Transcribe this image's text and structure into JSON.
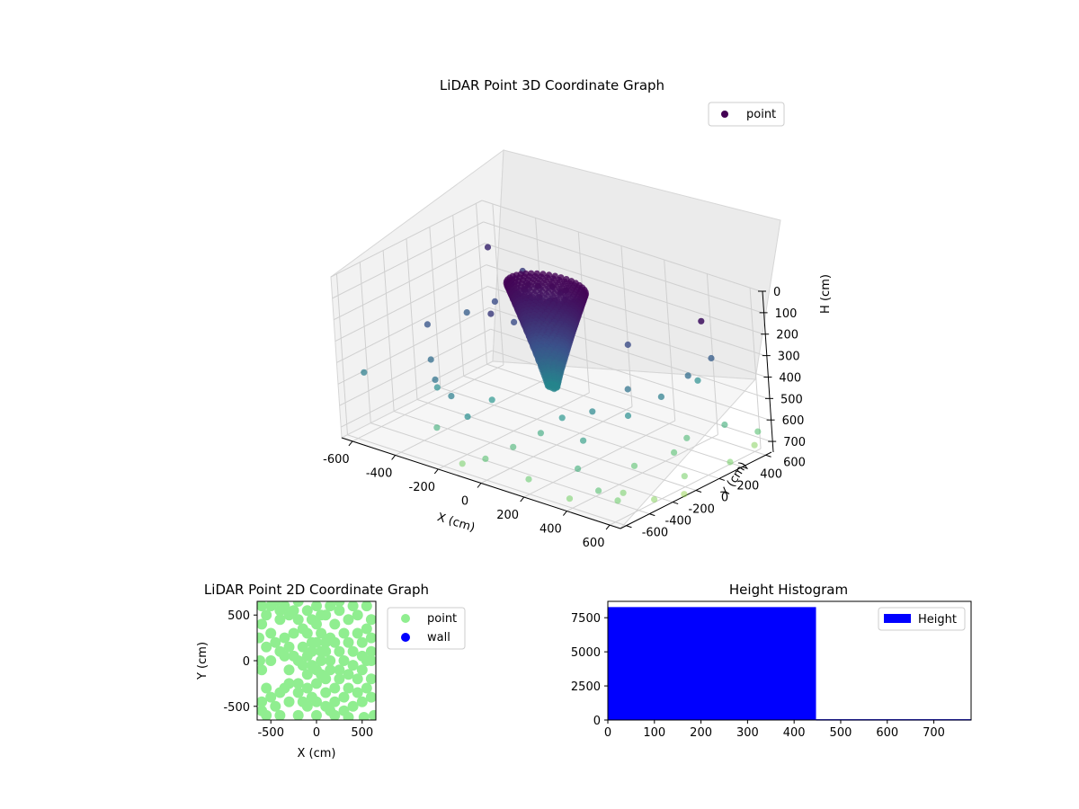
{
  "chart_data": [
    {
      "type": "scatter3d",
      "title": "LiDAR Point 3D Coordinate Graph",
      "xlabel": "X (cm)",
      "ylabel": "Y (cm)",
      "zlabel": "H (cm)",
      "xlim": [
        -650,
        650
      ],
      "ylim": [
        -650,
        650
      ],
      "zlim": [
        0,
        750
      ],
      "zaxis_inverted": true,
      "xticks": [
        -600,
        -400,
        -200,
        0,
        200,
        400,
        600
      ],
      "yticks": [
        -600,
        -400,
        -200,
        0,
        200,
        400,
        600
      ],
      "zticks": [
        0,
        100,
        200,
        300,
        400,
        500,
        600,
        700
      ],
      "colormap": [
        "#440154",
        "#3b528b",
        "#21918c",
        "#5ec962",
        "#fde725"
      ],
      "legend": {
        "entries": [
          {
            "label": "point",
            "color": "#440154"
          }
        ],
        "placement": "top-right"
      },
      "grid": true,
      "series": [
        {
          "name": "point",
          "note_values": "[x, y, h] in cm, estimated",
          "values": [
            [
              -60,
              40,
              40
            ],
            [
              -10,
              70,
              35
            ],
            [
              40,
              50,
              40
            ],
            [
              80,
              10,
              50
            ],
            [
              -90,
              -20,
              50
            ],
            [
              0,
              -60,
              45
            ],
            [
              60,
              -40,
              45
            ],
            [
              -40,
              -70,
              55
            ],
            [
              110,
              40,
              60
            ],
            [
              -120,
              60,
              60
            ],
            [
              30,
              110,
              50
            ],
            [
              -30,
              -100,
              60
            ],
            [
              -70,
              20,
              110
            ],
            [
              -20,
              60,
              100
            ],
            [
              40,
              20,
              105
            ],
            [
              10,
              -40,
              110
            ],
            [
              -50,
              -30,
              120
            ],
            [
              60,
              -10,
              125
            ],
            [
              -40,
              30,
              180
            ],
            [
              10,
              30,
              170
            ],
            [
              30,
              -20,
              190
            ],
            [
              -20,
              -20,
              200
            ],
            [
              -60,
              60,
              210
            ],
            [
              60,
              40,
              215
            ],
            [
              -20,
              20,
              250
            ],
            [
              20,
              10,
              260
            ],
            [
              0,
              -10,
              280
            ],
            [
              -30,
              -10,
              300
            ],
            [
              40,
              30,
              310
            ],
            [
              -10,
              10,
              350
            ],
            [
              10,
              0,
              380
            ],
            [
              -20,
              -10,
              420
            ],
            [
              0,
              20,
              450
            ],
            [
              15,
              -15,
              480
            ],
            [
              -100,
              60,
              150
            ],
            [
              -300,
              50,
              250
            ],
            [
              -420,
              300,
              300
            ],
            [
              -500,
              200,
              350
            ],
            [
              -350,
              400,
              320
            ],
            [
              -200,
              300,
              300
            ],
            [
              -450,
              500,
              280
            ],
            [
              -250,
              150,
              300
            ],
            [
              -520,
              -100,
              330
            ],
            [
              -400,
              -300,
              400
            ],
            [
              -300,
              -450,
              420
            ],
            [
              -200,
              -500,
              450
            ],
            [
              -100,
              -550,
              500
            ],
            [
              -450,
              600,
              250
            ],
            [
              500,
              400,
              120
            ],
            [
              -580,
              -550,
              450
            ],
            [
              -350,
              -350,
              500
            ],
            [
              -150,
              -250,
              520
            ],
            [
              -250,
              -550,
              600
            ],
            [
              0,
              -600,
              650
            ],
            [
              200,
              -600,
              680
            ],
            [
              400,
              -620,
              700
            ],
            [
              -100,
              -620,
              700
            ],
            [
              300,
              -300,
              550
            ],
            [
              380,
              -500,
              600
            ],
            [
              500,
              -550,
              650
            ],
            [
              150,
              -200,
              520
            ],
            [
              250,
              -120,
              480
            ],
            [
              350,
              0,
              500
            ],
            [
              400,
              200,
              450
            ],
            [
              420,
              400,
              400
            ],
            [
              450,
              550,
              350
            ],
            [
              200,
              300,
              300
            ],
            [
              300,
              100,
              420
            ],
            [
              100,
              -300,
              580
            ],
            [
              50,
              -450,
              620
            ],
            [
              620,
              600,
              650
            ],
            [
              650,
              300,
              700
            ],
            [
              600,
              0,
              700
            ],
            [
              620,
              -300,
              720
            ],
            [
              560,
              -500,
              690
            ],
            [
              500,
              100,
              650
            ],
            [
              450,
              -150,
              660
            ],
            [
              550,
              450,
              600
            ],
            [
              480,
              250,
              630
            ],
            [
              520,
              -380,
              700
            ],
            [
              -620,
              620,
              200
            ],
            [
              350,
              600,
              500
            ],
            [
              600,
              600,
              720
            ],
            [
              650,
              -100,
              740
            ]
          ]
        }
      ]
    },
    {
      "type": "scatter",
      "title": "LiDAR Point 2D Coordinate Graph",
      "xlabel": "X (cm)",
      "ylabel": "Y (cm)",
      "xlim": [
        -650,
        650
      ],
      "ylim": [
        -650,
        650
      ],
      "xticks": [
        -500,
        0,
        500
      ],
      "yticks": [
        -500,
        0,
        500
      ],
      "legend": {
        "entries": [
          {
            "label": "point",
            "color": "#90ee90"
          },
          {
            "label": "wall",
            "color": "#0000ff"
          }
        ],
        "placement": "outside-right"
      },
      "grid": false,
      "series": [
        {
          "name": "point",
          "color": "#90ee90",
          "note_values": "[x, y] in cm, estimated",
          "values": [
            [
              -50,
              200
            ],
            [
              -100,
              300
            ],
            [
              0,
              400
            ],
            [
              -150,
              150
            ],
            [
              50,
              100
            ],
            [
              -200,
              0
            ],
            [
              0,
              -100
            ],
            [
              100,
              -200
            ],
            [
              200,
              -300
            ],
            [
              300,
              -400
            ],
            [
              -300,
              500
            ],
            [
              -400,
              450
            ],
            [
              -500,
              300
            ],
            [
              -600,
              600
            ],
            [
              -550,
              500
            ],
            [
              -600,
              400
            ],
            [
              -500,
              600
            ],
            [
              -450,
              650
            ],
            [
              -350,
              600
            ],
            [
              -250,
              550
            ],
            [
              -200,
              450
            ],
            [
              -100,
              550
            ],
            [
              0,
              600
            ],
            [
              100,
              500
            ],
            [
              200,
              400
            ],
            [
              300,
              300
            ],
            [
              350,
              200
            ],
            [
              250,
              100
            ],
            [
              150,
              0
            ],
            [
              50,
              0
            ],
            [
              -50,
              100
            ],
            [
              -100,
              50
            ],
            [
              -150,
              -50
            ],
            [
              -250,
              50
            ],
            [
              -300,
              150
            ],
            [
              -350,
              250
            ],
            [
              -250,
              300
            ],
            [
              -150,
              350
            ],
            [
              -50,
              450
            ],
            [
              50,
              300
            ],
            [
              100,
              200
            ],
            [
              0,
              200
            ],
            [
              -300,
              -100
            ],
            [
              -350,
              -300
            ],
            [
              -200,
              -350
            ],
            [
              -100,
              -300
            ],
            [
              0,
              -250
            ],
            [
              100,
              -350
            ],
            [
              200,
              -450
            ],
            [
              300,
              -550
            ],
            [
              400,
              -500
            ],
            [
              500,
              -450
            ],
            [
              600,
              -400
            ],
            [
              550,
              -300
            ],
            [
              450,
              -200
            ],
            [
              350,
              -150
            ],
            [
              250,
              -100
            ],
            [
              500,
              -100
            ],
            [
              600,
              -200
            ],
            [
              550,
              0
            ],
            [
              600,
              100
            ],
            [
              400,
              100
            ],
            [
              450,
              300
            ],
            [
              550,
              350
            ],
            [
              600,
              450
            ],
            [
              450,
              500
            ],
            [
              350,
              450
            ],
            [
              400,
              600
            ],
            [
              550,
              600
            ],
            [
              250,
              550
            ],
            [
              -100,
              -500
            ],
            [
              -300,
              -450
            ],
            [
              -450,
              -500
            ],
            [
              -550,
              -600
            ],
            [
              -600,
              -550
            ],
            [
              -500,
              -400
            ],
            [
              -400,
              -350
            ],
            [
              0,
              -450
            ],
            [
              100,
              -500
            ],
            [
              200,
              -600
            ],
            [
              350,
              -620
            ],
            [
              -200,
              -600
            ],
            [
              0,
              -600
            ],
            [
              100,
              100
            ],
            [
              150,
              250
            ],
            [
              -50,
              -50
            ],
            [
              -100,
              -150
            ],
            [
              -200,
              -250
            ],
            [
              50,
              -150
            ],
            [
              150,
              -100
            ],
            [
              250,
              -200
            ],
            [
              350,
              -300
            ],
            [
              450,
              -350
            ],
            [
              200,
              200
            ],
            [
              -400,
              100
            ],
            [
              -500,
              0
            ],
            [
              -600,
              -100
            ],
            [
              -550,
              150
            ],
            [
              -450,
              200
            ],
            [
              -350,
              50
            ],
            [
              -550,
              -300
            ],
            [
              -600,
              -450
            ],
            [
              -400,
              -600
            ],
            [
              -300,
              -250
            ],
            [
              600,
              250
            ],
            [
              500,
              200
            ],
            [
              150,
              -550
            ],
            [
              -50,
              -400
            ],
            [
              -150,
              -450
            ],
            [
              50,
              500
            ],
            [
              150,
              600
            ],
            [
              250,
              650
            ],
            [
              -400,
              550
            ],
            [
              -200,
              650
            ],
            [
              300,
              0
            ],
            [
              400,
              -50
            ],
            [
              500,
              50
            ],
            [
              600,
              0
            ],
            [
              630,
              -600
            ],
            [
              520,
              -620
            ],
            [
              -620,
              0
            ],
            [
              -630,
              250
            ]
          ]
        },
        {
          "name": "wall",
          "color": "#0000ff",
          "values": []
        }
      ]
    },
    {
      "type": "histogram",
      "title": "Height Histogram",
      "xlim": [
        0,
        780
      ],
      "ylim": [
        0,
        8700
      ],
      "xticks": [
        0,
        100,
        200,
        300,
        400,
        500,
        600,
        700
      ],
      "yticks": [
        0,
        2500,
        5000,
        7500
      ],
      "legend": {
        "entries": [
          {
            "label": "Height",
            "color": "#0000ff"
          }
        ],
        "placement": "top-right"
      },
      "grid": false,
      "series": [
        {
          "name": "Height",
          "color": "#0000ff",
          "bins": [
            [
              0,
              447,
              8280
            ],
            [
              447,
              780,
              60
            ]
          ]
        }
      ]
    }
  ]
}
